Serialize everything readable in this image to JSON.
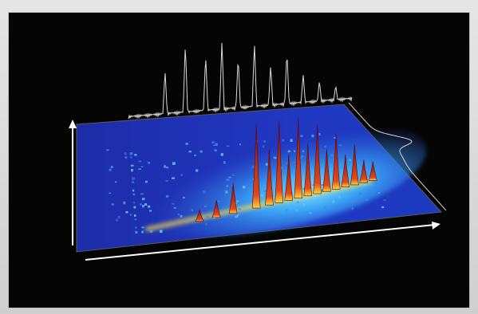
{
  "chart_data": {
    "type": "3d-surface",
    "title": "",
    "xlabel": "",
    "ylabel": "",
    "grid": false,
    "legend": "none",
    "background": "#050505",
    "colors": {
      "plane_low": "#1f2fb3",
      "cloud_mid": "#3fb7ff",
      "ridge": "#ffe14a",
      "peak_red": "#b8141c",
      "projection_line": "#d8d8d8",
      "axis_arrow": "#ffffff"
    },
    "peaks": [
      {
        "x": 0.52,
        "height": 0.88
      },
      {
        "x": 0.56,
        "height": 0.58
      },
      {
        "x": 0.59,
        "height": 0.86
      },
      {
        "x": 0.62,
        "height": 0.48
      },
      {
        "x": 0.65,
        "height": 0.84
      },
      {
        "x": 0.68,
        "height": 0.54
      },
      {
        "x": 0.71,
        "height": 0.72
      },
      {
        "x": 0.74,
        "height": 0.44
      },
      {
        "x": 0.77,
        "height": 0.58
      },
      {
        "x": 0.8,
        "height": 0.34
      },
      {
        "x": 0.83,
        "height": 0.42
      },
      {
        "x": 0.86,
        "height": 0.24
      },
      {
        "x": 0.89,
        "height": 0.2
      },
      {
        "x": 0.45,
        "height": 0.32
      },
      {
        "x": 0.4,
        "height": 0.18
      },
      {
        "x": 0.35,
        "height": 0.12
      }
    ],
    "top_projection_peaks": [
      {
        "x": 0.39,
        "height": 0.62
      },
      {
        "x": 0.44,
        "height": 0.96
      },
      {
        "x": 0.49,
        "height": 0.78
      },
      {
        "x": 0.53,
        "height": 0.95
      },
      {
        "x": 0.57,
        "height": 0.72
      },
      {
        "x": 0.61,
        "height": 0.9
      },
      {
        "x": 0.65,
        "height": 0.58
      },
      {
        "x": 0.69,
        "height": 0.74
      },
      {
        "x": 0.73,
        "height": 0.42
      },
      {
        "x": 0.77,
        "height": 0.32
      },
      {
        "x": 0.81,
        "height": 0.24
      }
    ],
    "side_projection_peak": {
      "position": 0.5,
      "height": 1.0
    }
  }
}
